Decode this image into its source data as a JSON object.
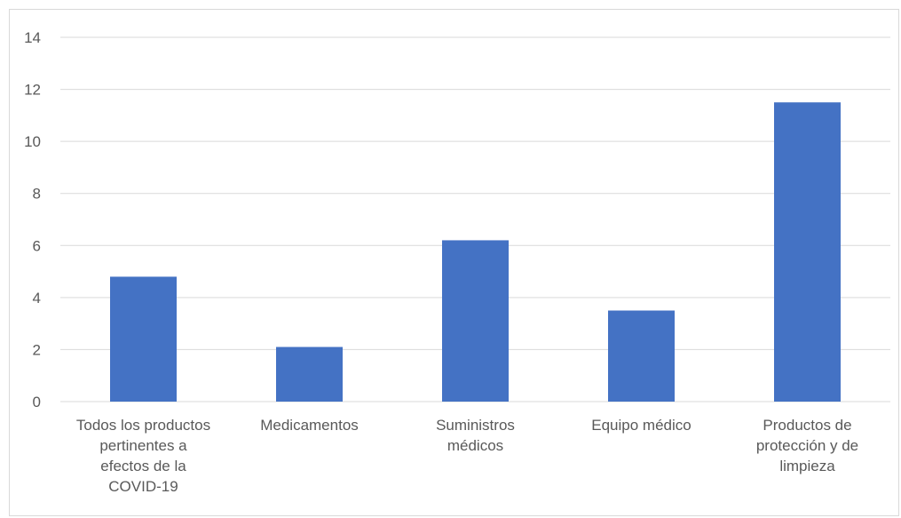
{
  "chart_data": {
    "type": "bar",
    "categories": [
      [
        "Todos los productos",
        "pertinentes a",
        "efectos de la",
        "COVID-19"
      ],
      [
        "Medicamentos"
      ],
      [
        "Suministros",
        "médicos"
      ],
      [
        "Equipo médico"
      ],
      [
        "Productos de",
        "protección y de",
        "limpieza"
      ]
    ],
    "values": [
      4.8,
      2.1,
      6.2,
      3.5,
      11.5
    ],
    "ylim": [
      0,
      14
    ],
    "yticks": [
      0,
      2,
      4,
      6,
      8,
      10,
      12,
      14
    ],
    "grid": true,
    "legend": "none",
    "colors": {
      "bar": "#4472c4",
      "grid": "#d9d9d9",
      "text": "#595959"
    }
  }
}
